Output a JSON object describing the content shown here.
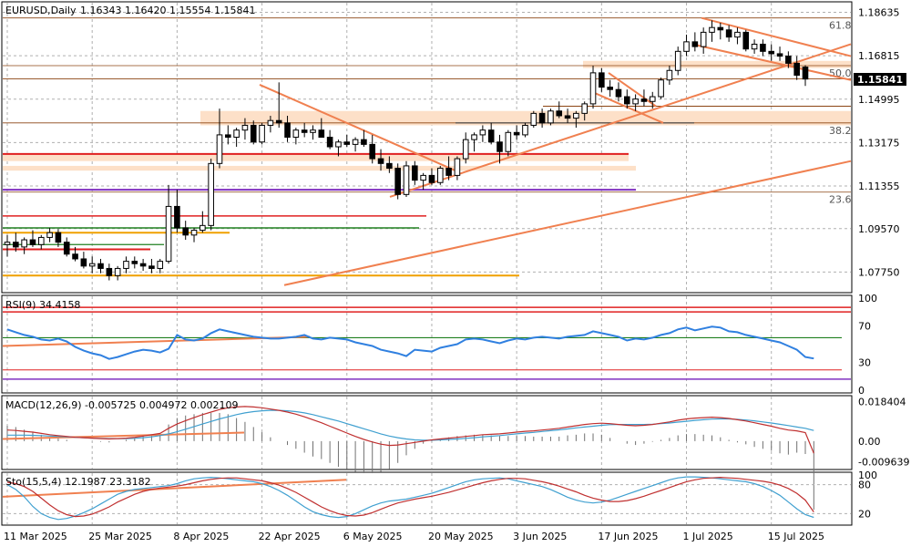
{
  "chart_data": [
    {
      "type": "candlestick",
      "panel": "price",
      "symbol_label": "EURUSD,Daily",
      "ohlc_label": "1.16343 1.16420 1.15554 1.15841",
      "last_price_label": "1.15841",
      "ylim": [
        1.07,
        1.19
      ],
      "y_ticks": [
        "1.18635",
        "1.16815",
        "1.14995",
        "1.13175",
        "1.11355",
        "1.09570",
        "1.07750"
      ],
      "x_ticks": [
        "11 Mar 2025",
        "25 Mar 2025",
        "8 Apr 2025",
        "22 Apr 2025",
        "6 May 2025",
        "20 May 2025",
        "3 Jun 2025",
        "17 Jun 2025",
        "1 Jul 2025",
        "15 Jul 2025"
      ],
      "grid": true,
      "candles": [
        [
          1.089,
          1.093,
          1.084,
          1.09
        ],
        [
          1.09,
          1.094,
          1.086,
          1.088
        ],
        [
          1.088,
          1.092,
          1.085,
          1.091
        ],
        [
          1.091,
          1.095,
          1.088,
          1.089
        ],
        [
          1.089,
          1.093,
          1.087,
          1.092
        ],
        [
          1.092,
          1.096,
          1.09,
          1.094
        ],
        [
          1.094,
          1.0955,
          1.088,
          1.09
        ],
        [
          1.09,
          1.092,
          1.084,
          1.085
        ],
        [
          1.085,
          1.088,
          1.082,
          1.083
        ],
        [
          1.083,
          1.086,
          1.079,
          1.08
        ],
        [
          1.08,
          1.084,
          1.077,
          1.081
        ],
        [
          1.081,
          1.083,
          1.077,
          1.079
        ],
        [
          1.079,
          1.081,
          1.074,
          1.076
        ],
        [
          1.076,
          1.08,
          1.074,
          1.079
        ],
        [
          1.079,
          1.084,
          1.077,
          1.082
        ],
        [
          1.082,
          1.084,
          1.079,
          1.081
        ],
        [
          1.081,
          1.083,
          1.078,
          1.08
        ],
        [
          1.08,
          1.083,
          1.077,
          1.079
        ],
        [
          1.079,
          1.083,
          1.077,
          1.082
        ],
        [
          1.082,
          1.114,
          1.081,
          1.105
        ],
        [
          1.105,
          1.112,
          1.094,
          1.096
        ],
        [
          1.096,
          1.099,
          1.091,
          1.093
        ],
        [
          1.093,
          1.096,
          1.09,
          1.095
        ],
        [
          1.095,
          1.103,
          1.094,
          1.097
        ],
        [
          1.097,
          1.125,
          1.095,
          1.123
        ],
        [
          1.123,
          1.146,
          1.121,
          1.135
        ],
        [
          1.135,
          1.139,
          1.131,
          1.134
        ],
        [
          1.134,
          1.138,
          1.13,
          1.137
        ],
        [
          1.137,
          1.142,
          1.133,
          1.139
        ],
        [
          1.139,
          1.141,
          1.131,
          1.132
        ],
        [
          1.132,
          1.14,
          1.131,
          1.139
        ],
        [
          1.139,
          1.143,
          1.136,
          1.141
        ],
        [
          1.141,
          1.157,
          1.138,
          1.14
        ],
        [
          1.14,
          1.143,
          1.132,
          1.134
        ],
        [
          1.134,
          1.138,
          1.131,
          1.137
        ],
        [
          1.137,
          1.14,
          1.134,
          1.136
        ],
        [
          1.136,
          1.139,
          1.133,
          1.137
        ],
        [
          1.137,
          1.142,
          1.135,
          1.134
        ],
        [
          1.134,
          1.137,
          1.129,
          1.13
        ],
        [
          1.13,
          1.133,
          1.126,
          1.132
        ],
        [
          1.132,
          1.135,
          1.13,
          1.131
        ],
        [
          1.131,
          1.134,
          1.128,
          1.133
        ],
        [
          1.133,
          1.137,
          1.13,
          1.131
        ],
        [
          1.131,
          1.135,
          1.123,
          1.125
        ],
        [
          1.125,
          1.129,
          1.12,
          1.123
        ],
        [
          1.123,
          1.126,
          1.119,
          1.121
        ],
        [
          1.121,
          1.123,
          1.108,
          1.11
        ],
        [
          1.11,
          1.124,
          1.109,
          1.122
        ],
        [
          1.122,
          1.124,
          1.114,
          1.116
        ],
        [
          1.116,
          1.119,
          1.112,
          1.118
        ],
        [
          1.118,
          1.121,
          1.114,
          1.115
        ],
        [
          1.115,
          1.122,
          1.114,
          1.121
        ],
        [
          1.121,
          1.126,
          1.116,
          1.118
        ],
        [
          1.118,
          1.126,
          1.116,
          1.125
        ],
        [
          1.125,
          1.136,
          1.123,
          1.133
        ],
        [
          1.133,
          1.136,
          1.128,
          1.135
        ],
        [
          1.135,
          1.139,
          1.132,
          1.137
        ],
        [
          1.137,
          1.14,
          1.131,
          1.132
        ],
        [
          1.132,
          1.135,
          1.123,
          1.128
        ],
        [
          1.128,
          1.137,
          1.126,
          1.136
        ],
        [
          1.136,
          1.139,
          1.133,
          1.135
        ],
        [
          1.135,
          1.14,
          1.134,
          1.139
        ],
        [
          1.139,
          1.145,
          1.138,
          1.144
        ],
        [
          1.144,
          1.146,
          1.138,
          1.14
        ],
        [
          1.14,
          1.146,
          1.139,
          1.145
        ],
        [
          1.145,
          1.149,
          1.142,
          1.143
        ],
        [
          1.143,
          1.146,
          1.14,
          1.142
        ],
        [
          1.142,
          1.145,
          1.138,
          1.144
        ],
        [
          1.144,
          1.149,
          1.141,
          1.148
        ],
        [
          1.148,
          1.164,
          1.146,
          1.161
        ],
        [
          1.161,
          1.163,
          1.153,
          1.155
        ],
        [
          1.155,
          1.158,
          1.151,
          1.154
        ],
        [
          1.154,
          1.157,
          1.149,
          1.151
        ],
        [
          1.151,
          1.154,
          1.146,
          1.148
        ],
        [
          1.148,
          1.152,
          1.145,
          1.15
        ],
        [
          1.15,
          1.154,
          1.147,
          1.149
        ],
        [
          1.149,
          1.153,
          1.146,
          1.151
        ],
        [
          1.151,
          1.159,
          1.15,
          1.158
        ],
        [
          1.158,
          1.164,
          1.156,
          1.162
        ],
        [
          1.162,
          1.172,
          1.16,
          1.17
        ],
        [
          1.17,
          1.177,
          1.168,
          1.174
        ],
        [
          1.174,
          1.178,
          1.17,
          1.172
        ],
        [
          1.172,
          1.18,
          1.169,
          1.178
        ],
        [
          1.178,
          1.183,
          1.174,
          1.18
        ],
        [
          1.18,
          1.182,
          1.175,
          1.179
        ],
        [
          1.179,
          1.181,
          1.174,
          1.176
        ],
        [
          1.176,
          1.18,
          1.173,
          1.178
        ],
        [
          1.178,
          1.179,
          1.17,
          1.171
        ],
        [
          1.171,
          1.175,
          1.169,
          1.173
        ],
        [
          1.173,
          1.175,
          1.168,
          1.17
        ],
        [
          1.17,
          1.173,
          1.166,
          1.169
        ],
        [
          1.169,
          1.172,
          1.166,
          1.168
        ],
        [
          1.168,
          1.17,
          1.163,
          1.165
        ],
        [
          1.165,
          1.168,
          1.158,
          1.16
        ],
        [
          1.1634,
          1.1642,
          1.1555,
          1.1584
        ]
      ],
      "horizontal_levels": [
        {
          "price": 1.184,
          "color": "#8b4513",
          "label": "61.8",
          "x_start_frac": 0.0
        },
        {
          "price": 1.164,
          "color": "#8b4513",
          "label": "50.0",
          "x_start_frac": 0.0
        },
        {
          "price": 1.14,
          "color": "#8b4513",
          "label": "38.2",
          "x_start_frac": 0.0
        },
        {
          "price": 1.111,
          "color": "#8b4513",
          "label": "23.6",
          "x_start_frac": 0.0
        }
      ]
    },
    {
      "type": "line",
      "panel": "rsi",
      "label": "RSI(9) 34.4158",
      "ylim": [
        0,
        100
      ],
      "y_ticks": [
        "100",
        "70",
        "30",
        "0"
      ],
      "values": [
        66,
        63,
        60,
        58,
        55,
        54,
        56,
        53,
        47,
        43,
        40,
        38,
        34,
        36,
        39,
        42,
        44,
        43,
        41,
        45,
        60,
        55,
        54,
        56,
        62,
        66,
        64,
        62,
        60,
        58,
        57,
        56,
        56,
        57,
        58,
        60,
        56,
        55,
        57,
        56,
        55,
        52,
        50,
        48,
        44,
        42,
        40,
        37,
        44,
        43,
        42,
        46,
        48,
        50,
        55,
        56,
        55,
        53,
        51,
        54,
        56,
        55,
        57,
        58,
        57,
        56,
        58,
        59,
        60,
        64,
        62,
        60,
        58,
        54,
        56,
        55,
        57,
        60,
        62,
        66,
        68,
        65,
        67,
        69,
        68,
        64,
        63,
        60,
        58,
        56,
        54,
        52,
        48,
        44,
        36,
        34.4158
      ]
    },
    {
      "type": "line",
      "panel": "macd",
      "label": "MACD(12,26,9) -0.005725 0.004972 0.002109",
      "ylim": [
        -0.012,
        0.02
      ],
      "y_ticks": [
        "0.018404",
        "0.00",
        "-0.009639"
      ],
      "macd": [
        0.0052,
        0.005,
        0.0046,
        0.0042,
        0.0036,
        0.003,
        0.0026,
        0.0022,
        0.0018,
        0.0016,
        0.0014,
        0.0012,
        0.001,
        0.0012,
        0.0014,
        0.0018,
        0.0024,
        0.003,
        0.0036,
        0.006,
        0.008,
        0.0096,
        0.011,
        0.0124,
        0.0136,
        0.0148,
        0.0156,
        0.016,
        0.0162,
        0.016,
        0.0156,
        0.015,
        0.0144,
        0.0136,
        0.0126,
        0.0114,
        0.01,
        0.0086,
        0.007,
        0.0054,
        0.0038,
        0.0022,
        0.0008,
        -0.0004,
        -0.0014,
        -0.002,
        -0.0018,
        -0.0012,
        -0.0006,
        0.0,
        0.0006,
        0.001,
        0.0014,
        0.0018,
        0.0022,
        0.0026,
        0.003,
        0.0032,
        0.0034,
        0.0038,
        0.0042,
        0.0046,
        0.0048,
        0.0052,
        0.0056,
        0.006,
        0.0066,
        0.0072,
        0.0078,
        0.0082,
        0.0084,
        0.0082,
        0.0078,
        0.0074,
        0.0072,
        0.0074,
        0.0078,
        0.0084,
        0.009,
        0.0098,
        0.0104,
        0.0108,
        0.011,
        0.0112,
        0.011,
        0.0106,
        0.01,
        0.0094,
        0.0086,
        0.0078,
        0.007,
        0.006,
        0.0052,
        0.0048,
        0.004,
        -0.0057
      ],
      "signal": [
        0.0028,
        0.0028,
        0.0028,
        0.0027,
        0.0026,
        0.0024,
        0.0022,
        0.002,
        0.0018,
        0.0016,
        0.0014,
        0.0013,
        0.0012,
        0.0012,
        0.0012,
        0.0013,
        0.0016,
        0.002,
        0.0026,
        0.0034,
        0.0044,
        0.0056,
        0.0068,
        0.008,
        0.0092,
        0.0104,
        0.0114,
        0.0124,
        0.0132,
        0.0138,
        0.0142,
        0.0144,
        0.0144,
        0.0142,
        0.0138,
        0.0132,
        0.0124,
        0.0114,
        0.0104,
        0.0094,
        0.0082,
        0.007,
        0.0058,
        0.0046,
        0.0034,
        0.0024,
        0.0016,
        0.001,
        0.0006,
        0.0004,
        0.0004,
        0.0006,
        0.0008,
        0.001,
        0.0013,
        0.0016,
        0.002,
        0.0023,
        0.0026,
        0.003,
        0.0034,
        0.0038,
        0.0041,
        0.0045,
        0.0049,
        0.0053,
        0.0057,
        0.0062,
        0.0066,
        0.007,
        0.0074,
        0.0077,
        0.0078,
        0.0078,
        0.0078,
        0.0078,
        0.0079,
        0.0082,
        0.0085,
        0.0089,
        0.0093,
        0.0097,
        0.01,
        0.0103,
        0.0104,
        0.0104,
        0.0102,
        0.0099,
        0.0095,
        0.009,
        0.0085,
        0.0079,
        0.0073,
        0.0066,
        0.006,
        0.005
      ],
      "trendline_color": "#f08050"
    },
    {
      "type": "line",
      "panel": "stochastic",
      "label": "Sto(15,5,4) 12.1987 23.3182",
      "ylim": [
        0,
        100
      ],
      "y_ticks": [
        "100",
        "80",
        "20"
      ],
      "k": [
        80,
        70,
        55,
        35,
        20,
        12,
        8,
        10,
        15,
        22,
        30,
        40,
        50,
        60,
        66,
        70,
        72,
        74,
        76,
        78,
        82,
        88,
        92,
        94,
        95,
        94,
        92,
        90,
        88,
        86,
        82,
        76,
        68,
        58,
        46,
        34,
        24,
        18,
        14,
        12,
        14,
        20,
        28,
        36,
        42,
        46,
        48,
        50,
        54,
        58,
        62,
        68,
        74,
        80,
        86,
        90,
        92,
        93,
        94,
        92,
        88,
        84,
        80,
        76,
        70,
        62,
        54,
        48,
        44,
        42,
        44,
        48,
        54,
        60,
        66,
        72,
        78,
        84,
        90,
        94,
        96,
        96,
        95,
        94,
        92,
        90,
        88,
        86,
        82,
        76,
        68,
        58,
        44,
        30,
        18,
        12.1987
      ],
      "d": [
        85,
        82,
        76,
        66,
        52,
        38,
        26,
        18,
        14,
        15,
        19,
        26,
        34,
        44,
        52,
        60,
        66,
        70,
        73,
        75,
        77,
        80,
        84,
        88,
        91,
        93,
        94,
        94,
        92,
        90,
        88,
        84,
        79,
        72,
        64,
        54,
        44,
        34,
        26,
        20,
        16,
        15,
        17,
        22,
        29,
        36,
        42,
        46,
        50,
        53,
        56,
        60,
        64,
        69,
        74,
        79,
        84,
        88,
        91,
        93,
        93,
        92,
        89,
        86,
        82,
        77,
        71,
        65,
        58,
        52,
        48,
        45,
        45,
        47,
        51,
        56,
        62,
        68,
        74,
        80,
        86,
        90,
        93,
        94,
        95,
        94,
        93,
        91,
        89,
        87,
        84,
        79,
        72,
        62,
        48,
        23.3182
      ]
    }
  ],
  "colors": {
    "bull_body": "#ffffff",
    "bear_body": "#000000",
    "trendline": "#f08050",
    "zone_fill": "#fde0c8",
    "red_level": "#e02020",
    "purple_level": "#8030c0",
    "green_level": "#208020",
    "orange_level": "#f0a000",
    "rsi_line": "#3080e0",
    "macd_line": "#c03030",
    "signal_line": "#40a0d0",
    "histogram": "#707070",
    "grid": "#b0b0b0"
  }
}
